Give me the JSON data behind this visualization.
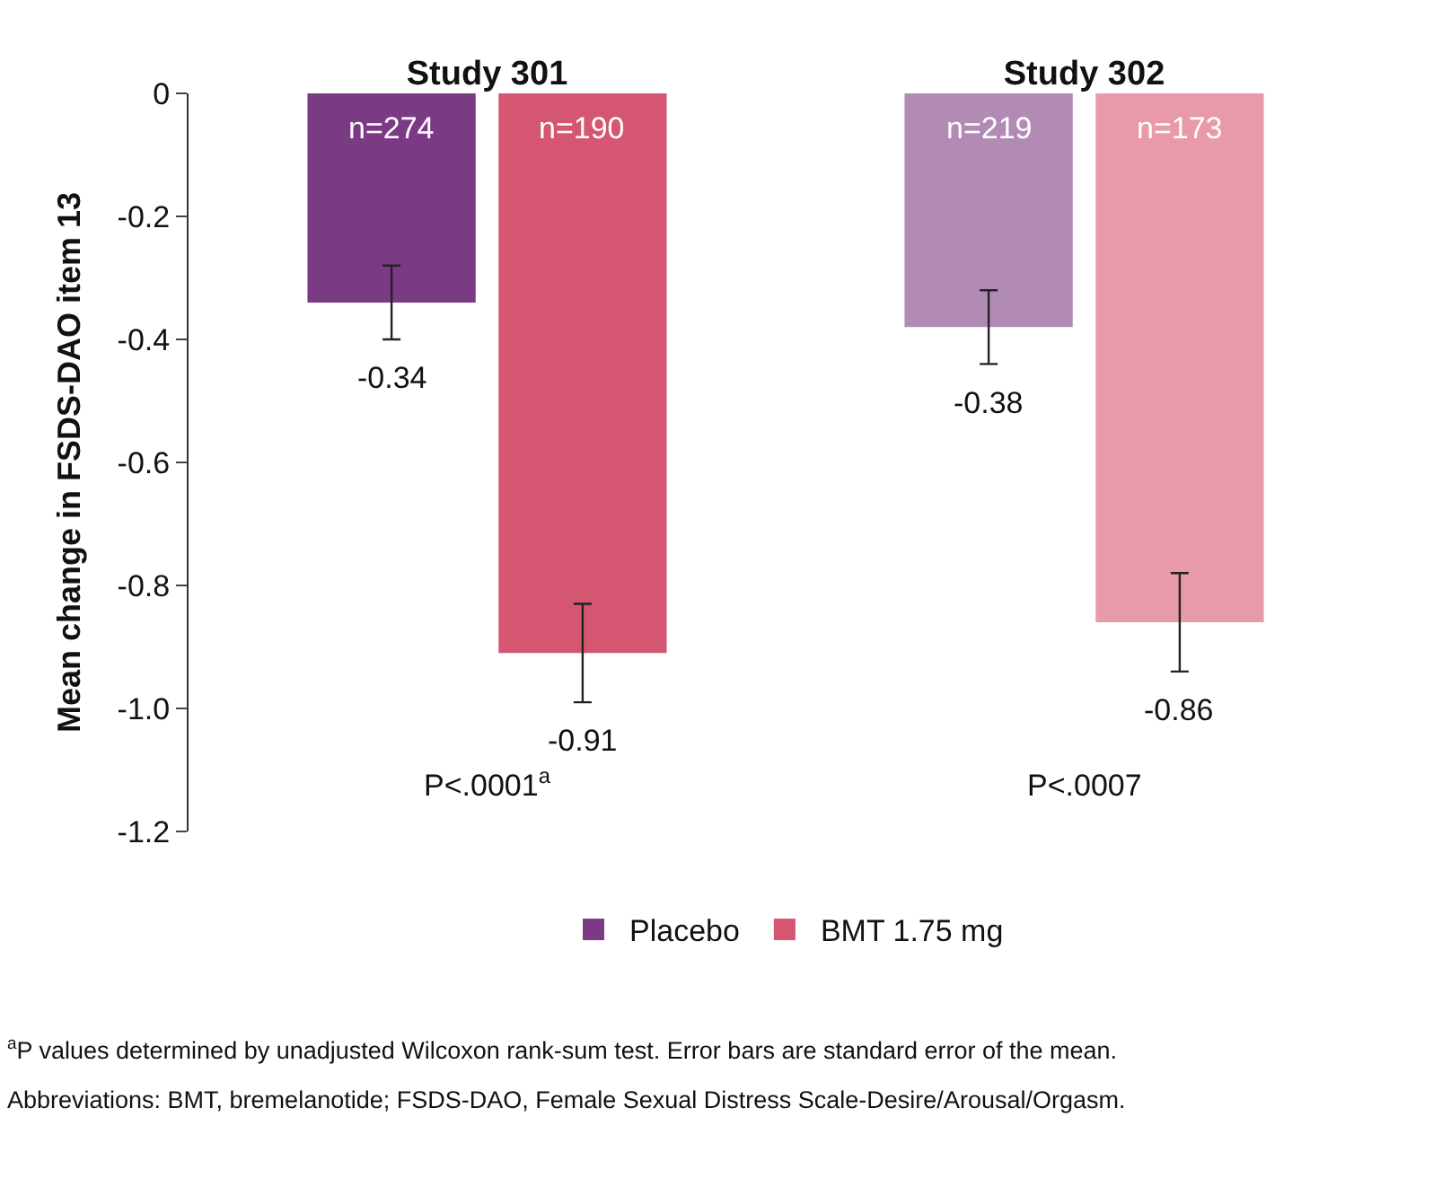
{
  "chart_data": {
    "type": "bar",
    "ylabel": "Mean change in FSDS-DAO item 13",
    "categories": [
      "Study 301",
      "Study 302"
    ],
    "series": [
      {
        "name": "Placebo",
        "colors": [
          "#7b3a84",
          "#b28bb5"
        ],
        "values": [
          -0.34,
          -0.38
        ],
        "errors": [
          0.06,
          0.06
        ]
      },
      {
        "name": "BMT 1.75 mg",
        "colors": [
          "#d45670",
          "#e89aaa"
        ],
        "values": [
          -0.91,
          -0.86
        ],
        "errors": [
          0.08,
          0.08
        ]
      }
    ],
    "ylim": [
      -1.2,
      0
    ],
    "yticks": [
      0,
      -0.2,
      -0.4,
      -0.6,
      -0.8,
      {
        "value": -1.0,
        "label": "-1.0"
      },
      -1.2
    ],
    "data_labels": true,
    "legend": "bottom",
    "annotations": [
      "n=274",
      "n=190",
      "n=219",
      "n=173",
      "P<.0001$^{a}$",
      "P<.0007",
      "$^{a}$P values determined by unadjusted Wilcoxon rank-sum test. Error bars are standard error of the mean.",
      "Abbreviations: BMT, bremelanotide; FSDS-DAO, Female Sexual Distress Scale-Desire/Arousal/Orgasm."
    ]
  }
}
